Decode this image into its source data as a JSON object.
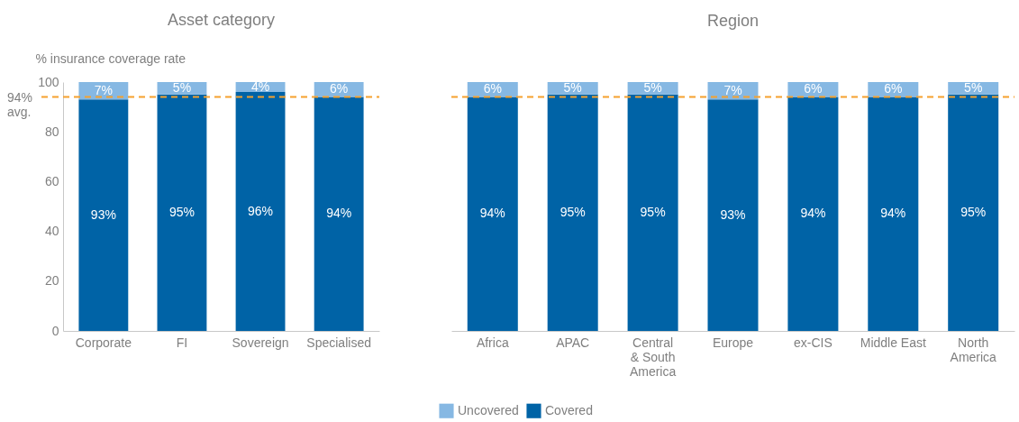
{
  "chart_data": [
    {
      "type": "bar",
      "title": "Asset category",
      "ylabel": "% insurance coverage rate",
      "categories": [
        "Corporate",
        "FI",
        "Sovereign",
        "Specialised"
      ],
      "series": [
        {
          "name": "Covered",
          "color": "#0063a6",
          "values": [
            93,
            95,
            96,
            94
          ],
          "value_labels": [
            "93%",
            "95%",
            "96%",
            "94%"
          ]
        },
        {
          "name": "Uncovered",
          "color": "#86b8e3",
          "values": [
            7,
            5,
            4,
            6
          ],
          "value_labels": [
            "7%",
            "5%",
            "4%",
            "6%"
          ]
        }
      ],
      "stacked": true,
      "ylim": [
        0,
        100
      ],
      "yticks": [
        0,
        20,
        40,
        60,
        80,
        100
      ],
      "ref_lines": [
        {
          "axis": "y",
          "value": 94,
          "label": "94% avg.",
          "color": "#f5a12e",
          "line_style": "dashed"
        }
      ],
      "legend": "bottom"
    },
    {
      "type": "bar",
      "title": "Region",
      "categories": [
        "Africa",
        "APAC",
        "Central & South America",
        "Europe",
        "ex-CIS",
        "Middle East",
        "North America"
      ],
      "series": [
        {
          "name": "Covered",
          "color": "#0063a6",
          "values": [
            94,
            95,
            95,
            93,
            94,
            94,
            95
          ],
          "value_labels": [
            "94%",
            "95%",
            "95%",
            "93%",
            "94%",
            "94%",
            "95%"
          ]
        },
        {
          "name": "Uncovered",
          "color": "#86b8e3",
          "values": [
            6,
            5,
            5,
            7,
            6,
            6,
            5
          ],
          "value_labels": [
            "6%",
            "5%",
            "5%",
            "7%",
            "6%",
            "6%",
            "5%"
          ]
        }
      ],
      "stacked": true,
      "ylim": [
        0,
        100
      ],
      "tick_labels": "x",
      "ref_lines": [
        {
          "axis": "y",
          "value": 94,
          "color": "#f5a12e",
          "line_style": "dashed"
        }
      ],
      "legend": "bottom"
    }
  ]
}
